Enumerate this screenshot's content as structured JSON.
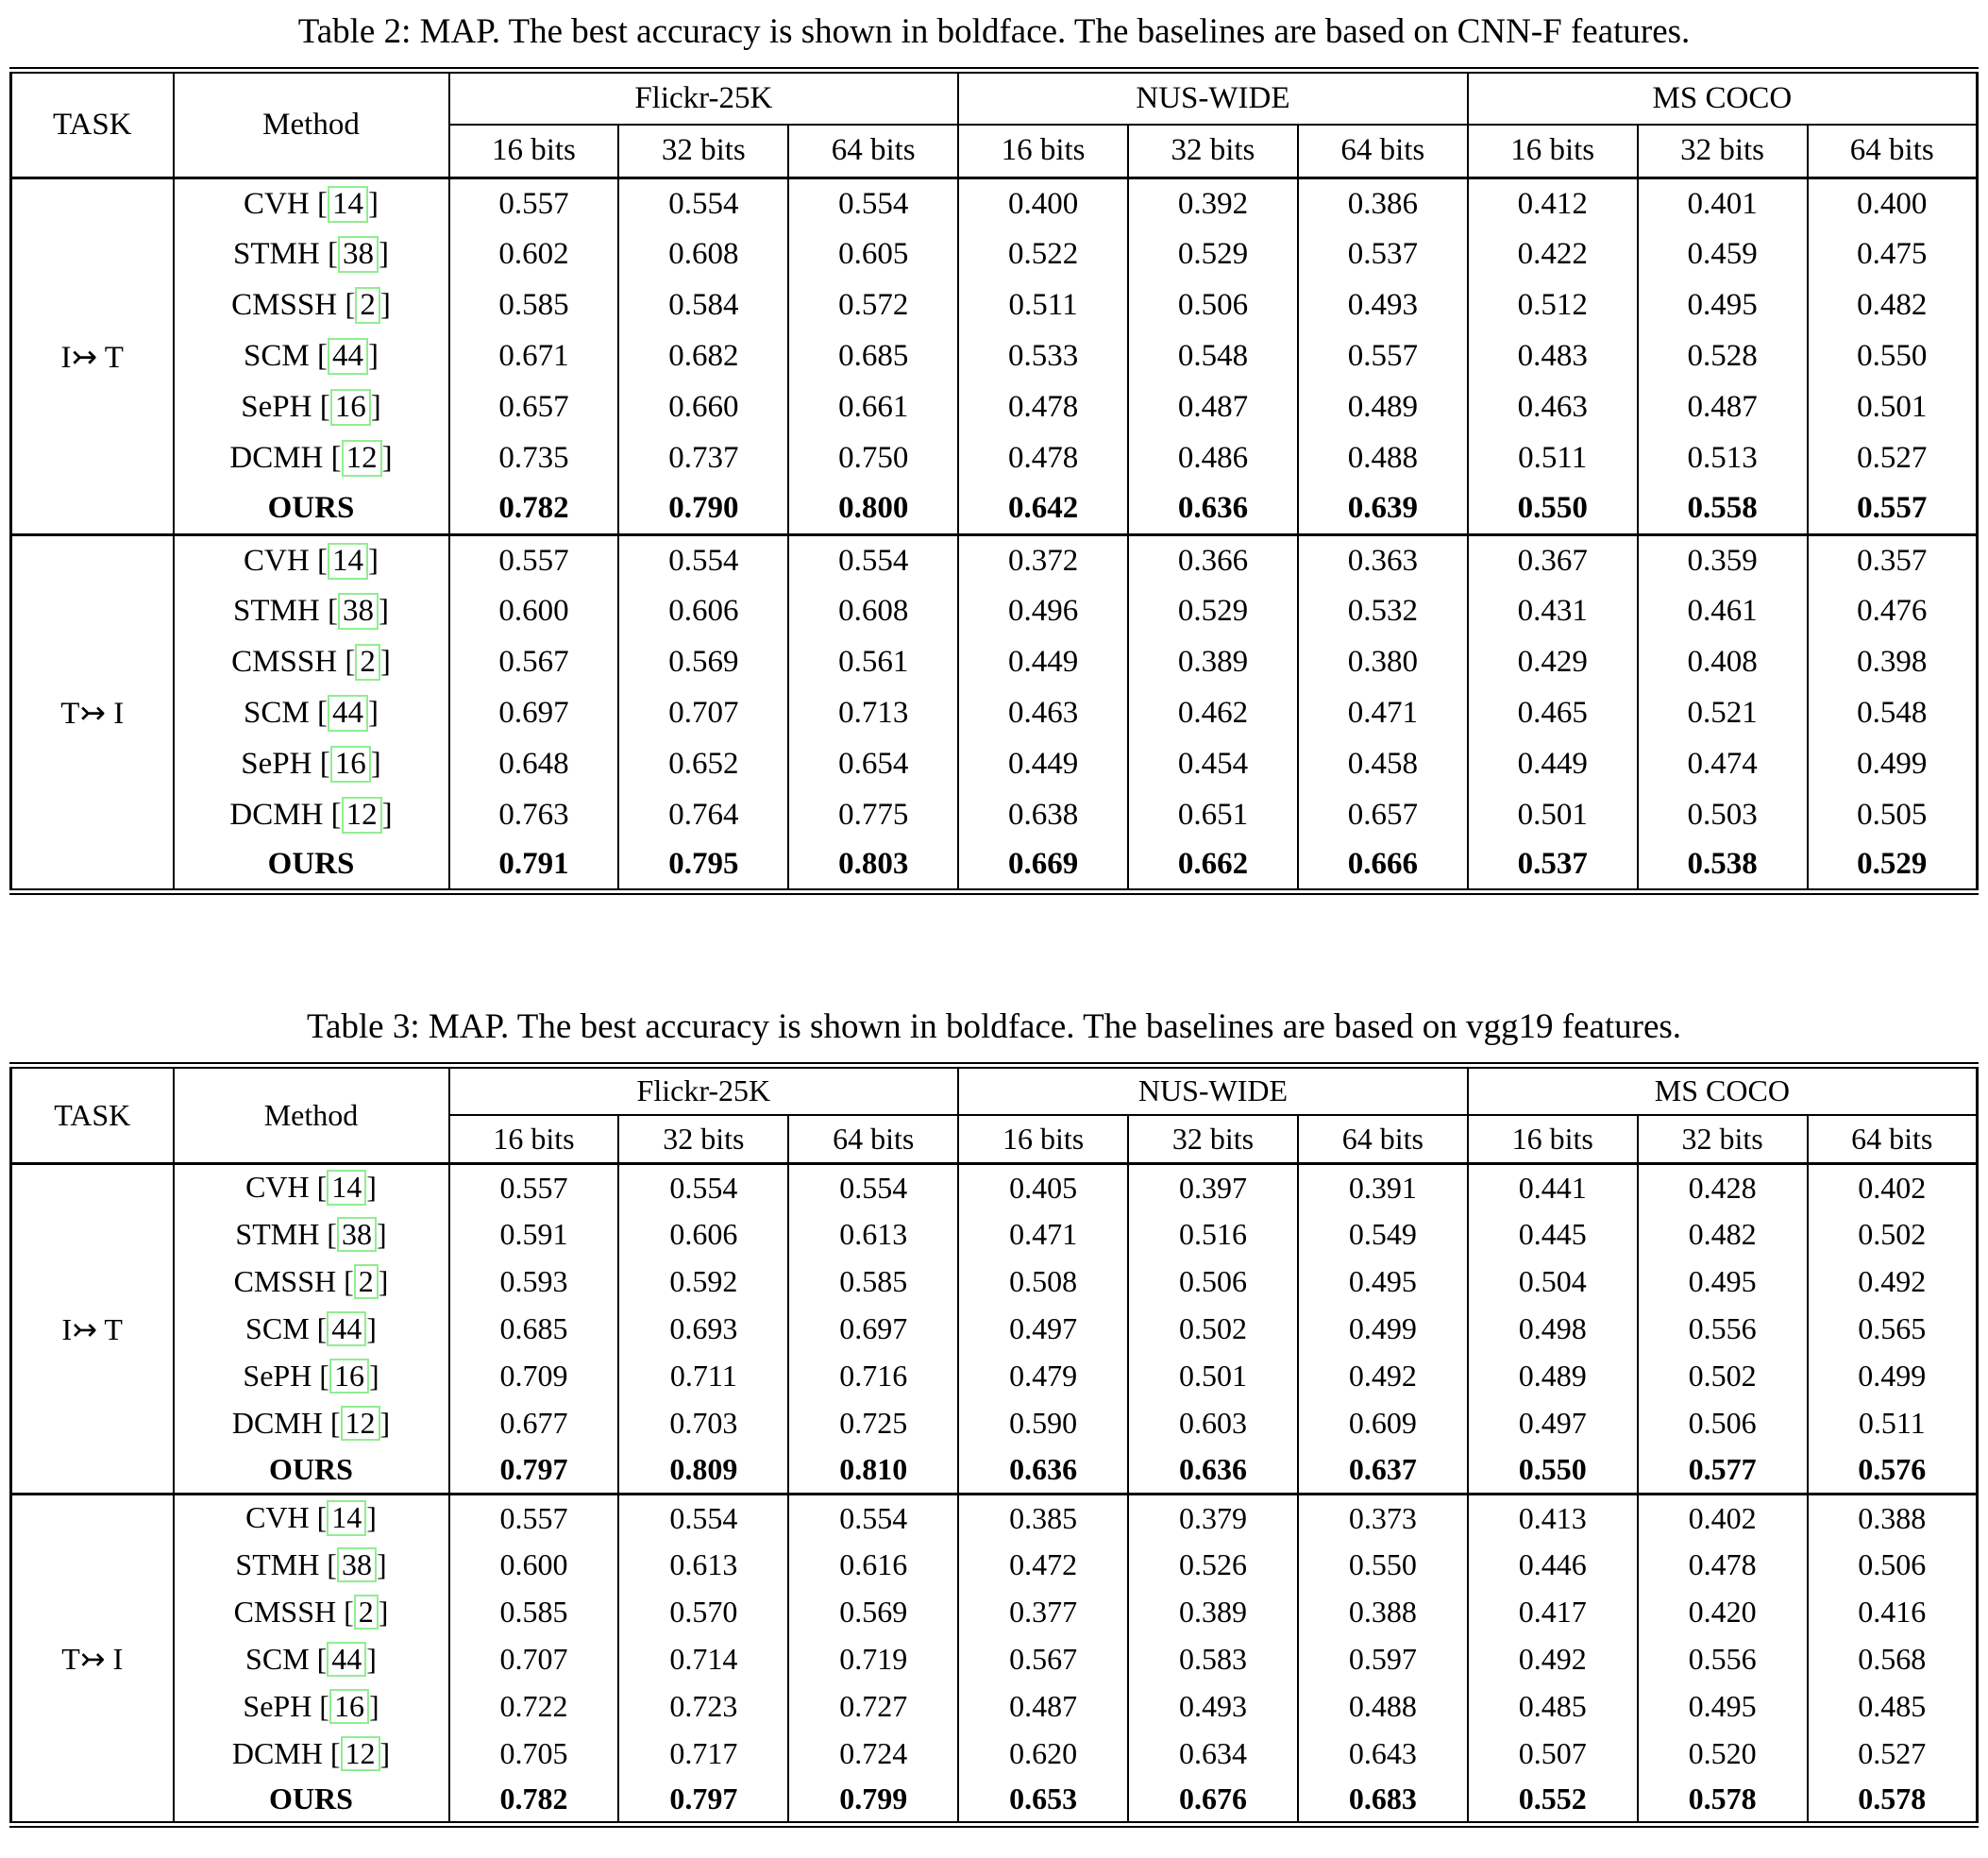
{
  "document": {
    "background": "#ffffff",
    "text_color": "#000000",
    "citation_box_color": "#90ee90"
  },
  "tables": [
    {
      "caption": "Table 2: MAP. The best accuracy is shown in boldface. The baselines are based on CNN-F features.",
      "header": {
        "task": "TASK",
        "method": "Method",
        "datasets": [
          "Flickr-25K",
          "NUS-WIDE",
          "MS COCO"
        ],
        "bits": [
          "16 bits",
          "32 bits",
          "64 bits"
        ]
      },
      "groups": [
        {
          "task": "I↣ T",
          "rows": [
            {
              "method": "CVH",
              "ref": "14",
              "bold": false,
              "values": [
                "0.557",
                "0.554",
                "0.554",
                "0.400",
                "0.392",
                "0.386",
                "0.412",
                "0.401",
                "0.400"
              ]
            },
            {
              "method": "STMH",
              "ref": "38",
              "bold": false,
              "values": [
                "0.602",
                "0.608",
                "0.605",
                "0.522",
                "0.529",
                "0.537",
                "0.422",
                "0.459",
                "0.475"
              ]
            },
            {
              "method": "CMSSH",
              "ref": "2",
              "bold": false,
              "values": [
                "0.585",
                "0.584",
                "0.572",
                "0.511",
                "0.506",
                "0.493",
                "0.512",
                "0.495",
                "0.482"
              ]
            },
            {
              "method": "SCM",
              "ref": "44",
              "bold": false,
              "values": [
                "0.671",
                "0.682",
                "0.685",
                "0.533",
                "0.548",
                "0.557",
                "0.483",
                "0.528",
                "0.550"
              ]
            },
            {
              "method": "SePH",
              "ref": "16",
              "bold": false,
              "values": [
                "0.657",
                "0.660",
                "0.661",
                "0.478",
                "0.487",
                "0.489",
                "0.463",
                "0.487",
                "0.501"
              ]
            },
            {
              "method": "DCMH",
              "ref": "12",
              "bold": false,
              "values": [
                "0.735",
                "0.737",
                "0.750",
                "0.478",
                "0.486",
                "0.488",
                "0.511",
                "0.513",
                "0.527"
              ]
            },
            {
              "method": "OURS",
              "ref": null,
              "bold": true,
              "values": [
                "0.782",
                "0.790",
                "0.800",
                "0.642",
                "0.636",
                "0.639",
                "0.550",
                "0.558",
                "0.557"
              ]
            }
          ]
        },
        {
          "task": "T↣ I",
          "rows": [
            {
              "method": "CVH",
              "ref": "14",
              "bold": false,
              "values": [
                "0.557",
                "0.554",
                "0.554",
                "0.372",
                "0.366",
                "0.363",
                "0.367",
                "0.359",
                "0.357"
              ]
            },
            {
              "method": "STMH",
              "ref": "38",
              "bold": false,
              "values": [
                "0.600",
                "0.606",
                "0.608",
                "0.496",
                "0.529",
                "0.532",
                "0.431",
                "0.461",
                "0.476"
              ]
            },
            {
              "method": "CMSSH",
              "ref": "2",
              "bold": false,
              "values": [
                "0.567",
                "0.569",
                "0.561",
                "0.449",
                "0.389",
                "0.380",
                "0.429",
                "0.408",
                "0.398"
              ]
            },
            {
              "method": "SCM",
              "ref": "44",
              "bold": false,
              "values": [
                "0.697",
                "0.707",
                "0.713",
                "0.463",
                "0.462",
                "0.471",
                "0.465",
                "0.521",
                "0.548"
              ]
            },
            {
              "method": "SePH",
              "ref": "16",
              "bold": false,
              "values": [
                "0.648",
                "0.652",
                "0.654",
                "0.449",
                "0.454",
                "0.458",
                "0.449",
                "0.474",
                "0.499"
              ]
            },
            {
              "method": "DCMH",
              "ref": "12",
              "bold": false,
              "values": [
                "0.763",
                "0.764",
                "0.775",
                "0.638",
                "0.651",
                "0.657",
                "0.501",
                "0.503",
                "0.505"
              ]
            },
            {
              "method": "OURS",
              "ref": null,
              "bold": true,
              "values": [
                "0.791",
                "0.795",
                "0.803",
                "0.669",
                "0.662",
                "0.666",
                "0.537",
                "0.538",
                "0.529"
              ]
            }
          ]
        }
      ]
    },
    {
      "caption": "Table 3: MAP. The best accuracy is shown in boldface. The baselines are based on vgg19 features.",
      "header": {
        "task": "TASK",
        "method": "Method",
        "datasets": [
          "Flickr-25K",
          "NUS-WIDE",
          "MS COCO"
        ],
        "bits": [
          "16 bits",
          "32 bits",
          "64 bits"
        ]
      },
      "groups": [
        {
          "task": "I↣ T",
          "rows": [
            {
              "method": "CVH",
              "ref": "14",
              "bold": false,
              "values": [
                "0.557",
                "0.554",
                "0.554",
                "0.405",
                "0.397",
                "0.391",
                "0.441",
                "0.428",
                "0.402"
              ]
            },
            {
              "method": "STMH",
              "ref": "38",
              "bold": false,
              "values": [
                "0.591",
                "0.606",
                "0.613",
                "0.471",
                "0.516",
                "0.549",
                "0.445",
                "0.482",
                "0.502"
              ]
            },
            {
              "method": "CMSSH",
              "ref": "2",
              "bold": false,
              "values": [
                "0.593",
                "0.592",
                "0.585",
                "0.508",
                "0.506",
                "0.495",
                "0.504",
                "0.495",
                "0.492"
              ]
            },
            {
              "method": "SCM",
              "ref": "44",
              "bold": false,
              "values": [
                "0.685",
                "0.693",
                "0.697",
                "0.497",
                "0.502",
                "0.499",
                "0.498",
                "0.556",
                "0.565"
              ]
            },
            {
              "method": "SePH",
              "ref": "16",
              "bold": false,
              "values": [
                "0.709",
                "0.711",
                "0.716",
                "0.479",
                "0.501",
                "0.492",
                "0.489",
                "0.502",
                "0.499"
              ]
            },
            {
              "method": "DCMH",
              "ref": "12",
              "bold": false,
              "values": [
                "0.677",
                "0.703",
                "0.725",
                "0.590",
                "0.603",
                "0.609",
                "0.497",
                "0.506",
                "0.511"
              ]
            },
            {
              "method": "OURS",
              "ref": null,
              "bold": true,
              "values": [
                "0.797",
                "0.809",
                "0.810",
                "0.636",
                "0.636",
                "0.637",
                "0.550",
                "0.577",
                "0.576"
              ]
            }
          ]
        },
        {
          "task": "T↣ I",
          "rows": [
            {
              "method": "CVH",
              "ref": "14",
              "bold": false,
              "values": [
                "0.557",
                "0.554",
                "0.554",
                "0.385",
                "0.379",
                "0.373",
                "0.413",
                "0.402",
                "0.388"
              ]
            },
            {
              "method": "STMH",
              "ref": "38",
              "bold": false,
              "values": [
                "0.600",
                "0.613",
                "0.616",
                "0.472",
                "0.526",
                "0.550",
                "0.446",
                "0.478",
                "0.506"
              ]
            },
            {
              "method": "CMSSH",
              "ref": "2",
              "bold": false,
              "values": [
                "0.585",
                "0.570",
                "0.569",
                "0.377",
                "0.389",
                "0.388",
                "0.417",
                "0.420",
                "0.416"
              ]
            },
            {
              "method": "SCM",
              "ref": "44",
              "bold": false,
              "values": [
                "0.707",
                "0.714",
                "0.719",
                "0.567",
                "0.583",
                "0.597",
                "0.492",
                "0.556",
                "0.568"
              ]
            },
            {
              "method": "SePH",
              "ref": "16",
              "bold": false,
              "values": [
                "0.722",
                "0.723",
                "0.727",
                "0.487",
                "0.493",
                "0.488",
                "0.485",
                "0.495",
                "0.485"
              ]
            },
            {
              "method": "DCMH",
              "ref": "12",
              "bold": false,
              "values": [
                "0.705",
                "0.717",
                "0.724",
                "0.620",
                "0.634",
                "0.643",
                "0.507",
                "0.520",
                "0.527"
              ]
            },
            {
              "method": "OURS",
              "ref": null,
              "bold": true,
              "values": [
                "0.782",
                "0.797",
                "0.799",
                "0.653",
                "0.676",
                "0.683",
                "0.552",
                "0.578",
                "0.578"
              ]
            }
          ]
        }
      ]
    }
  ]
}
